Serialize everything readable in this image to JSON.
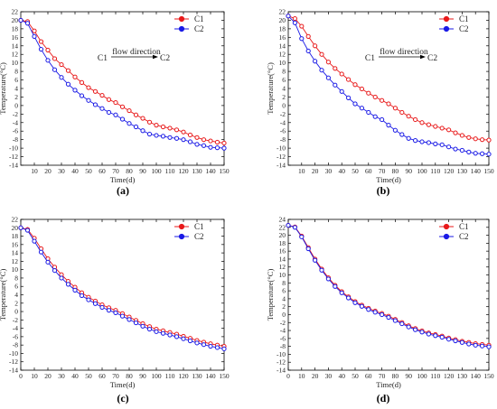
{
  "chart_data": [
    {
      "type": "line",
      "panel": "(a)",
      "xlabel": "Time(d)",
      "ylabel": "Temperature(°C)",
      "xlim": [
        0,
        150
      ],
      "ylim": [
        -14,
        22
      ],
      "xticks": [
        10,
        20,
        30,
        40,
        50,
        60,
        70,
        80,
        90,
        100,
        110,
        120,
        130,
        140,
        150
      ],
      "yticks": [
        -14,
        -12,
        -10,
        -8,
        -6,
        -4,
        -2,
        0,
        2,
        4,
        6,
        8,
        10,
        12,
        14,
        16,
        18,
        20,
        22
      ],
      "grid": false,
      "legend_position": "top-right",
      "annotation": {
        "text": "flow  direction",
        "from": "C1",
        "to": "C2"
      },
      "series": [
        {
          "name": "C1",
          "color": "#e8191a",
          "x": [
            0,
            5,
            10,
            15,
            20,
            25,
            30,
            35,
            40,
            45,
            50,
            55,
            60,
            65,
            70,
            75,
            80,
            85,
            90,
            95,
            100,
            105,
            110,
            115,
            120,
            125,
            130,
            135,
            140,
            145,
            150
          ],
          "y": [
            20,
            19.7,
            17.5,
            15,
            13,
            11,
            9.6,
            8.2,
            6.7,
            5.4,
            4.2,
            3.3,
            2.4,
            1.4,
            0.7,
            -0.3,
            -1.2,
            -2.2,
            -3,
            -3.9,
            -4.6,
            -5.0,
            -5.3,
            -5.7,
            -6.2,
            -6.9,
            -7.5,
            -8.0,
            -8.3,
            -8.6,
            -8.8
          ]
        },
        {
          "name": "C2",
          "color": "#1a1ae6",
          "x": [
            0,
            5,
            10,
            15,
            20,
            25,
            30,
            35,
            40,
            45,
            50,
            55,
            60,
            65,
            70,
            75,
            80,
            85,
            90,
            95,
            100,
            105,
            110,
            115,
            120,
            125,
            130,
            135,
            140,
            145,
            150
          ],
          "y": [
            20,
            19.3,
            16.2,
            13.2,
            10.6,
            8.4,
            6.6,
            5.0,
            3.6,
            2.3,
            1.2,
            0.2,
            -0.7,
            -1.6,
            -2.2,
            -3.2,
            -4.2,
            -5.0,
            -5.9,
            -6.7,
            -7.0,
            -7.2,
            -7.5,
            -7.7,
            -8.0,
            -8.5,
            -9.1,
            -9.4,
            -9.8,
            -9.9,
            -10
          ]
        }
      ]
    },
    {
      "type": "line",
      "panel": "(b)",
      "xlabel": "Time(d)",
      "ylabel": "Temperature(°C)",
      "xlim": [
        0,
        150
      ],
      "ylim": [
        -14,
        22
      ],
      "xticks": [
        10,
        20,
        30,
        40,
        50,
        60,
        70,
        80,
        90,
        100,
        110,
        120,
        130,
        140,
        150
      ],
      "yticks": [
        -14,
        -12,
        -10,
        -8,
        -6,
        -4,
        -2,
        0,
        2,
        4,
        6,
        8,
        10,
        12,
        14,
        16,
        18,
        20,
        22
      ],
      "grid": false,
      "legend_position": "top-right",
      "annotation": {
        "text": "flow direction",
        "from": "C1",
        "to": "C2"
      },
      "series": [
        {
          "name": "C1",
          "color": "#e8191a",
          "x": [
            0,
            5,
            10,
            15,
            20,
            25,
            30,
            35,
            40,
            45,
            50,
            55,
            60,
            65,
            70,
            75,
            80,
            85,
            90,
            95,
            100,
            105,
            110,
            115,
            120,
            125,
            130,
            135,
            140,
            145,
            150
          ],
          "y": [
            21,
            20.4,
            18.6,
            16.2,
            14,
            12,
            10.2,
            8.7,
            7.4,
            6.1,
            4.9,
            3.9,
            2.9,
            2.0,
            1.2,
            0.4,
            -0.6,
            -1.6,
            -2.5,
            -3.3,
            -4.0,
            -4.5,
            -4.9,
            -5.3,
            -5.7,
            -6.4,
            -7.0,
            -7.5,
            -7.8,
            -8.0,
            -8.1
          ]
        },
        {
          "name": "C2",
          "color": "#1a1ae6",
          "x": [
            0,
            5,
            10,
            15,
            20,
            25,
            30,
            35,
            40,
            45,
            50,
            55,
            60,
            65,
            70,
            75,
            80,
            85,
            90,
            95,
            100,
            105,
            110,
            115,
            120,
            125,
            130,
            135,
            140,
            145,
            150
          ],
          "y": [
            21,
            19.4,
            15.7,
            12.8,
            10.4,
            8.3,
            6.5,
            4.8,
            3.3,
            1.8,
            0.4,
            -0.6,
            -1.6,
            -2.6,
            -3.3,
            -4.6,
            -5.8,
            -6.8,
            -7.7,
            -8.2,
            -8.5,
            -8.7,
            -9.0,
            -9.2,
            -9.7,
            -10.2,
            -10.5,
            -10.9,
            -11.2,
            -11.3,
            -11.4
          ]
        }
      ]
    },
    {
      "type": "line",
      "panel": "(c)",
      "xlabel": "Time(d)",
      "ylabel": "Temperature(°C)",
      "xlim": [
        0,
        150
      ],
      "ylim": [
        -14,
        22
      ],
      "xticks": [
        0,
        10,
        20,
        30,
        40,
        50,
        60,
        70,
        80,
        90,
        100,
        110,
        120,
        130,
        140,
        150
      ],
      "yticks": [
        -14,
        -12,
        -10,
        -8,
        -6,
        -4,
        -2,
        0,
        2,
        4,
        6,
        8,
        10,
        12,
        14,
        16,
        18,
        20,
        22
      ],
      "grid": false,
      "legend_position": "top-right",
      "series": [
        {
          "name": "C1",
          "color": "#e8191a",
          "x": [
            0,
            5,
            10,
            15,
            20,
            25,
            30,
            35,
            40,
            45,
            50,
            55,
            60,
            65,
            70,
            75,
            80,
            85,
            90,
            95,
            100,
            105,
            110,
            115,
            120,
            125,
            130,
            135,
            140,
            145,
            150
          ],
          "y": [
            20,
            19.6,
            17.5,
            15,
            12.6,
            10.6,
            8.8,
            7.2,
            5.8,
            4.5,
            3.4,
            2.5,
            1.6,
            0.9,
            0.3,
            -0.5,
            -1.3,
            -2.1,
            -2.9,
            -3.6,
            -4.2,
            -4.6,
            -5.0,
            -5.4,
            -5.9,
            -6.4,
            -6.9,
            -7.3,
            -7.7,
            -8.0,
            -8.3
          ]
        },
        {
          "name": "C2",
          "color": "#1a1ae6",
          "x": [
            0,
            5,
            10,
            15,
            20,
            25,
            30,
            35,
            40,
            45,
            50,
            55,
            60,
            65,
            70,
            75,
            80,
            85,
            90,
            95,
            100,
            105,
            110,
            115,
            120,
            125,
            130,
            135,
            140,
            145,
            150
          ],
          "y": [
            20,
            19.4,
            16.8,
            14.2,
            11.8,
            9.8,
            8.0,
            6.5,
            5.1,
            3.8,
            2.8,
            1.9,
            1.0,
            0.3,
            -0.3,
            -1.1,
            -1.9,
            -2.7,
            -3.5,
            -4.2,
            -4.8,
            -5.2,
            -5.6,
            -6.0,
            -6.5,
            -7.0,
            -7.5,
            -7.9,
            -8.3,
            -8.6,
            -8.9
          ]
        }
      ]
    },
    {
      "type": "line",
      "panel": "(d)",
      "xlabel": "Time(d)",
      "ylabel": "Temperature(°C)",
      "xlim": [
        0,
        150
      ],
      "ylim": [
        -14,
        24
      ],
      "xticks": [
        0,
        10,
        20,
        30,
        40,
        50,
        60,
        70,
        80,
        90,
        100,
        110,
        120,
        130,
        140,
        150
      ],
      "yticks": [
        -14,
        -12,
        -10,
        -8,
        -6,
        -4,
        -2,
        0,
        2,
        4,
        6,
        8,
        10,
        12,
        14,
        16,
        18,
        20,
        22,
        24
      ],
      "grid": false,
      "legend_position": "top-right",
      "series": [
        {
          "name": "C1",
          "color": "#e8191a",
          "x": [
            0,
            5,
            10,
            15,
            20,
            25,
            30,
            35,
            40,
            45,
            50,
            55,
            60,
            65,
            70,
            75,
            80,
            85,
            90,
            95,
            100,
            105,
            110,
            115,
            120,
            125,
            130,
            135,
            140,
            145,
            150
          ],
          "y": [
            22.5,
            22.1,
            19.8,
            16.9,
            14.0,
            11.5,
            9.3,
            7.4,
            5.8,
            4.5,
            3.3,
            2.4,
            1.6,
            0.9,
            0.3,
            -0.4,
            -1.2,
            -2.0,
            -2.8,
            -3.5,
            -4.1,
            -4.6,
            -5.0,
            -5.4,
            -5.9,
            -6.3,
            -6.7,
            -7.0,
            -7.3,
            -7.5,
            -7.7
          ]
        },
        {
          "name": "C2",
          "color": "#1a1ae6",
          "x": [
            0,
            5,
            10,
            15,
            20,
            25,
            30,
            35,
            40,
            45,
            50,
            55,
            60,
            65,
            70,
            75,
            80,
            85,
            90,
            95,
            100,
            105,
            110,
            115,
            120,
            125,
            130,
            135,
            140,
            145,
            150
          ],
          "y": [
            22.5,
            22.0,
            19.6,
            16.6,
            13.7,
            11.2,
            9.0,
            7.1,
            5.5,
            4.2,
            3.0,
            2.1,
            1.3,
            0.6,
            0.0,
            -0.7,
            -1.5,
            -2.3,
            -3.1,
            -3.8,
            -4.4,
            -4.9,
            -5.3,
            -5.7,
            -6.2,
            -6.6,
            -7.0,
            -7.4,
            -7.7,
            -7.9,
            -8.1
          ]
        }
      ]
    }
  ]
}
